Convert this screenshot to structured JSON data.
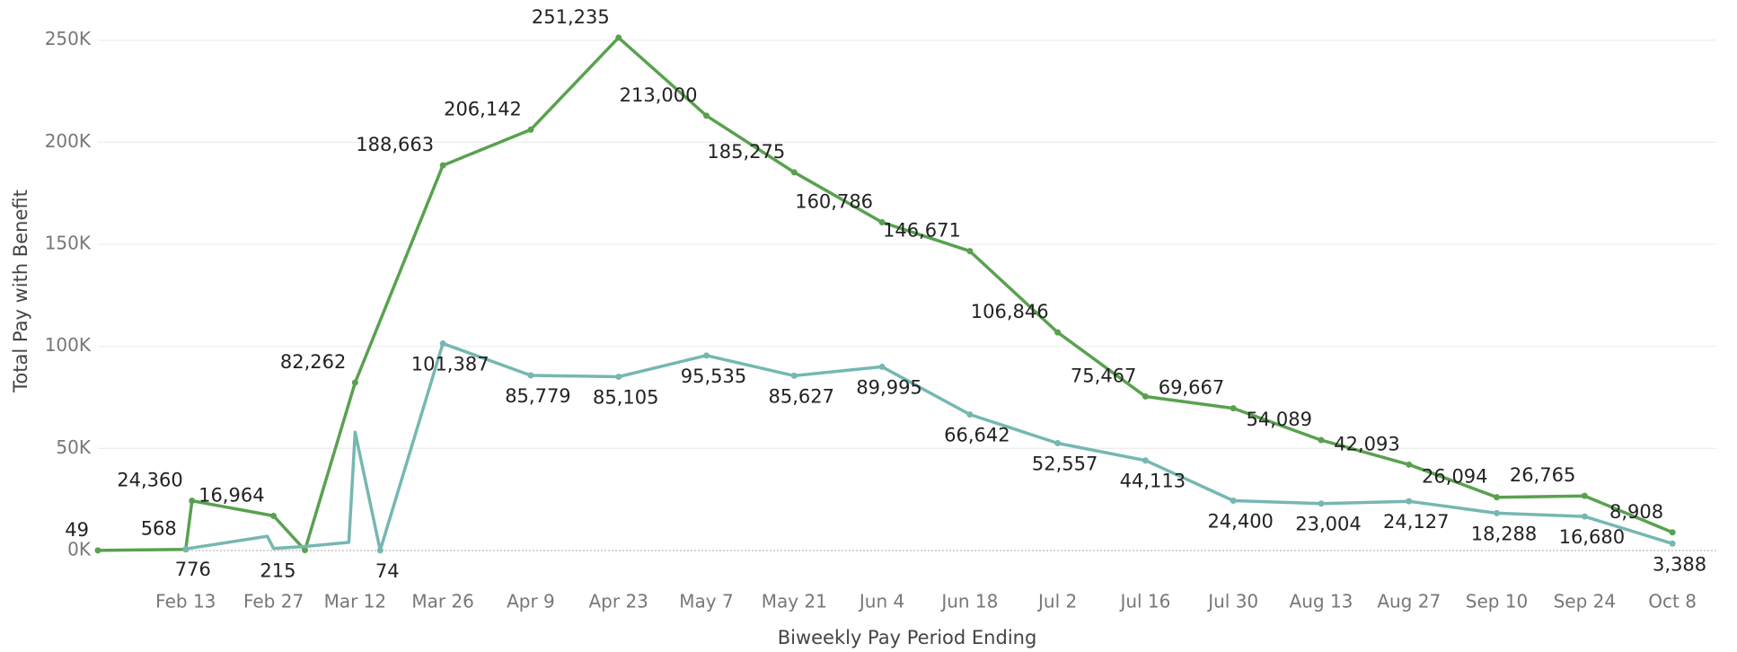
{
  "chart_data": {
    "type": "line",
    "xlabel": "Biweekly Pay Period Ending",
    "ylabel": "Total Pay with Benefit",
    "xlim": [
      "Jan 30",
      "Oct 15"
    ],
    "xticks": [
      "Feb 13",
      "Feb 27",
      "Mar 12",
      "Mar 26",
      "Apr 9",
      "Apr 23",
      "May 7",
      "May 21",
      "Jun 4",
      "Jun 18",
      "Jul 2",
      "Jul 16",
      "Jul 30",
      "Aug 13",
      "Aug 27",
      "Sep 10",
      "Sep 24",
      "Oct 8"
    ],
    "ylim": [
      0,
      260000
    ],
    "yticks": [
      {
        "value": 0,
        "label": "0K"
      },
      {
        "value": 50000,
        "label": "50K"
      },
      {
        "value": 100000,
        "label": "100K"
      },
      {
        "value": 150000,
        "label": "150K"
      },
      {
        "value": 200000,
        "label": "200K"
      },
      {
        "value": 250000,
        "label": "250K"
      }
    ],
    "grid": true,
    "series": [
      {
        "color": "#59a14f",
        "x": [
          "Jan 30",
          "Feb 13",
          "Feb 14",
          "Feb 27",
          "Mar 4",
          "Mar 12",
          "Mar 26",
          "Apr 9",
          "Apr 23",
          "May 7",
          "May 21",
          "Jun 4",
          "Jun 18",
          "Jul 2",
          "Jul 16",
          "Jul 30",
          "Aug 13",
          "Aug 27",
          "Sep 10",
          "Sep 24",
          "Oct 8"
        ],
        "values": [
          49,
          568,
          24360,
          16964,
          215,
          82262,
          188663,
          206142,
          251235,
          213000,
          185275,
          160786,
          146671,
          106846,
          75467,
          69667,
          54089,
          42093,
          26094,
          26765,
          8908
        ],
        "value_labels": [
          "49",
          "568",
          "24,360",
          "16,964",
          "215",
          "82,262",
          "188,663",
          "206,142",
          "251,235",
          "213,000",
          "185,275",
          "160,786",
          "146,671",
          "106,846",
          "75,467",
          "69,667",
          "54,089",
          "42,093",
          "26,094",
          "26,765",
          "8,908"
        ]
      },
      {
        "color": "#76b7b2",
        "x": [
          "Feb 13",
          "Feb 26",
          "Feb 27",
          "Mar 4",
          "Mar 11",
          "Mar 12",
          "Mar 16",
          "Mar 26",
          "Apr 9",
          "Apr 23",
          "May 7",
          "May 21",
          "Jun 4",
          "Jun 18",
          "Jul 2",
          "Jul 16",
          "Jul 30",
          "Aug 13",
          "Aug 27",
          "Sep 10",
          "Sep 24",
          "Oct 8"
        ],
        "values": [
          776,
          7000,
          1000,
          2000,
          4000,
          58000,
          74,
          101387,
          85779,
          85105,
          95535,
          85627,
          89995,
          66642,
          52557,
          44113,
          24400,
          23004,
          24127,
          18288,
          16680,
          3388
        ],
        "value_labels": [
          "776",
          null,
          null,
          null,
          null,
          null,
          "74",
          "101,387",
          "85,779",
          "85,105",
          "95,535",
          "85,627",
          "89,995",
          "66,642",
          "52,557",
          "44,113",
          "24,400",
          "23,004",
          "24,127",
          "18,288",
          "16,680",
          "3,388"
        ]
      }
    ]
  }
}
